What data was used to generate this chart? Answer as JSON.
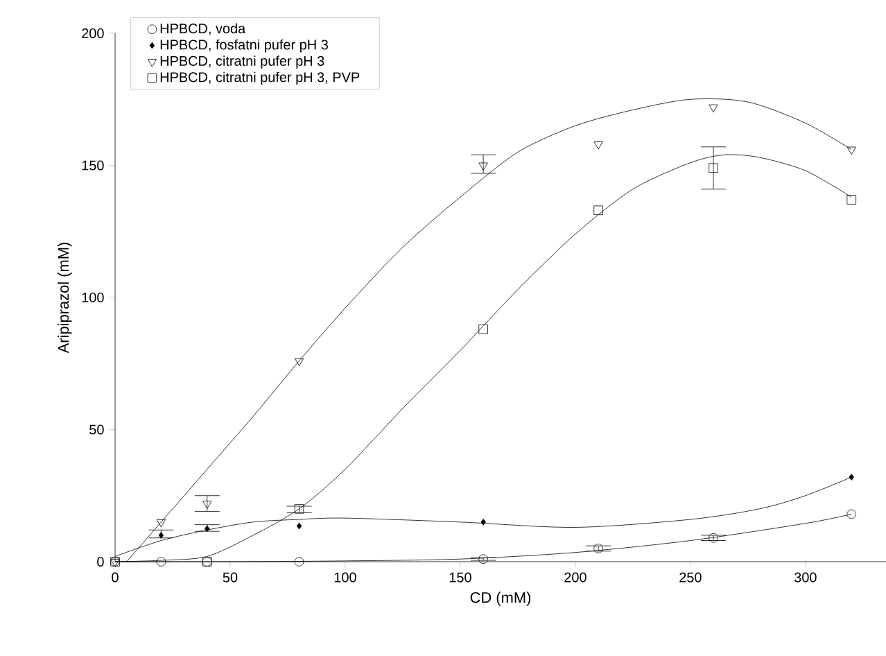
{
  "chart_data": {
    "type": "scatter",
    "xlabel": "CD (mM)",
    "ylabel": "Aripiprazol (mM)",
    "xlim": [
      0,
      335
    ],
    "ylim": [
      0,
      200
    ],
    "xticks": [
      0,
      50,
      100,
      150,
      200,
      250,
      300
    ],
    "yticks": [
      0,
      50,
      100,
      150,
      200
    ],
    "grid": false,
    "legend": "top left",
    "series": [
      {
        "name": "HPBCD, voda",
        "type": "scatter",
        "marker": "circle",
        "color": "#000000",
        "x": [
          0,
          20,
          40,
          80,
          160,
          210,
          260,
          320
        ],
        "values": [
          0,
          0,
          0,
          0,
          1,
          5,
          9,
          18
        ],
        "errors": [
          null,
          null,
          null,
          null,
          [
            0.5,
            1.5
          ],
          [
            4,
            6
          ],
          [
            8,
            10
          ],
          null
        ]
      },
      {
        "name": "HPBCD, fosfatni pufer pH 3",
        "type": "scatter",
        "marker": "diamond",
        "color": "#000000",
        "x": [
          20,
          40,
          80,
          160,
          320
        ],
        "values": [
          10,
          12.5,
          13.5,
          15,
          32
        ],
        "errors": [
          [
            9,
            12
          ],
          [
            11.5,
            14
          ],
          null,
          null,
          null
        ]
      },
      {
        "name": "HPBCD, citratni pufer pH 3",
        "type": "scatter",
        "marker": "triangle",
        "color": "#000000",
        "x": [
          0,
          20,
          40,
          80,
          160,
          210,
          260,
          320
        ],
        "values": [
          0,
          15,
          22,
          76,
          150,
          158,
          172,
          156
        ],
        "errors": [
          null,
          null,
          [
            19,
            25
          ],
          null,
          [
            147,
            154
          ],
          null,
          null,
          null
        ]
      },
      {
        "name": "HPBCD, citratni pufer pH 3, PVP",
        "type": "scatter",
        "marker": "square",
        "color": "#000000",
        "x": [
          0,
          40,
          80,
          160,
          210,
          260,
          320
        ],
        "values": [
          0,
          0,
          20,
          88,
          133,
          149,
          137
        ],
        "errors": [
          null,
          null,
          [
            18.5,
            21
          ],
          null,
          null,
          [
            141,
            157
          ],
          null
        ]
      },
      {
        "type": "line",
        "color": "#000000",
        "x": [
          0,
          50,
          100,
          150,
          200,
          250,
          300,
          320
        ],
        "values": [
          0,
          0,
          0.3,
          1,
          3.5,
          8,
          14.5,
          18
        ]
      },
      {
        "type": "line",
        "color": "#000000",
        "x": [
          0,
          20,
          40,
          60,
          80,
          100,
          150,
          200,
          250,
          280,
          300,
          320
        ],
        "values": [
          2,
          8,
          12,
          15,
          16,
          16.5,
          15,
          13,
          16,
          20,
          25,
          32
        ]
      },
      {
        "type": "line",
        "color": "#000000",
        "x": [
          5,
          10,
          20,
          40,
          60,
          80,
          100,
          125,
          150,
          175,
          200,
          225,
          250,
          275,
          300,
          320
        ],
        "values": [
          0,
          5,
          15,
          35,
          55,
          76,
          96,
          119,
          138,
          155,
          165,
          171,
          175,
          174,
          166,
          156
        ]
      },
      {
        "type": "line",
        "color": "#000000",
        "x": [
          0,
          20,
          40,
          60,
          80,
          100,
          125,
          150,
          175,
          200,
          225,
          250,
          265,
          280,
          300,
          320
        ],
        "values": [
          0,
          0.5,
          2,
          10,
          20,
          35,
          58,
          80,
          103,
          124,
          141,
          151,
          154,
          153,
          148,
          138
        ]
      }
    ]
  }
}
